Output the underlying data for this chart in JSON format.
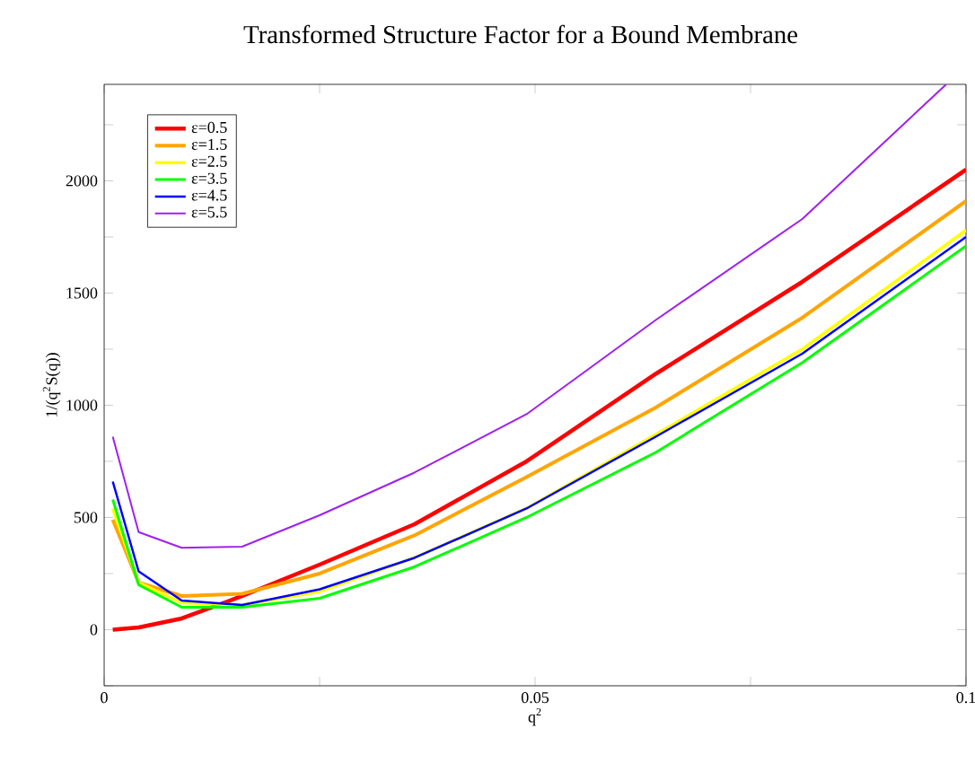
{
  "chart_data": {
    "type": "line",
    "title": "Transformed Structure Factor for a Bound Membrane",
    "xlabel": "q$^{2}$",
    "ylabel": "1/(q$^{2}$S(q))",
    "x": [
      0.001,
      0.004,
      0.009,
      0.016,
      0.025,
      0.036,
      0.049,
      0.064,
      0.081,
      0.1
    ],
    "xlim": [
      0,
      0.1
    ],
    "ylim": [
      -250,
      2430
    ],
    "xticks": [
      0,
      {
        "value": 0.025,
        "label": null
      },
      0.05,
      {
        "value": 0.075,
        "label": null
      },
      0.1
    ],
    "yticks": [
      {
        "value": -250,
        "label": null
      },
      0,
      {
        "value": 250,
        "label": null
      },
      500,
      {
        "value": 750,
        "label": null
      },
      1000,
      {
        "value": 1250,
        "label": null
      },
      1500,
      {
        "value": 1750,
        "label": null
      },
      2000,
      {
        "value": 2250,
        "label": null
      }
    ],
    "grid": false,
    "legend": "top left",
    "marker": "none",
    "line_style": "solid",
    "series": [
      {
        "name": "ε=0.5",
        "color": "#ff0000",
        "values": [
          0,
          10,
          50,
          150,
          290,
          470,
          750,
          1140,
          1550,
          2050
        ]
      },
      {
        "name": "ε=1.5",
        "color": "#ffa500",
        "values": [
          490,
          210,
          150,
          160,
          250,
          420,
          680,
          990,
          1390,
          1910
        ]
      },
      {
        "name": "ε=2.5",
        "color": "#ffff00",
        "values": [
          540,
          210,
          120,
          110,
          170,
          320,
          540,
          870,
          1250,
          1780
        ]
      },
      {
        "name": "ε=3.5",
        "color": "#00ff00",
        "values": [
          580,
          200,
          100,
          100,
          140,
          280,
          500,
          790,
          1190,
          1710
        ]
      },
      {
        "name": "ε=4.5",
        "color": "#0000ff",
        "values": [
          660,
          260,
          130,
          110,
          180,
          320,
          540,
          860,
          1230,
          1750
        ]
      },
      {
        "name": "ε=5.5",
        "color": "#a020f0",
        "x": [
          0.001,
          0.004,
          0.009,
          0.016,
          0.025,
          0.036,
          0.049,
          0.064,
          0.081,
          0.0977
        ],
        "values": [
          860,
          435,
          365,
          370,
          510,
          700,
          960,
          1380,
          1830,
          2430
        ]
      }
    ]
  }
}
